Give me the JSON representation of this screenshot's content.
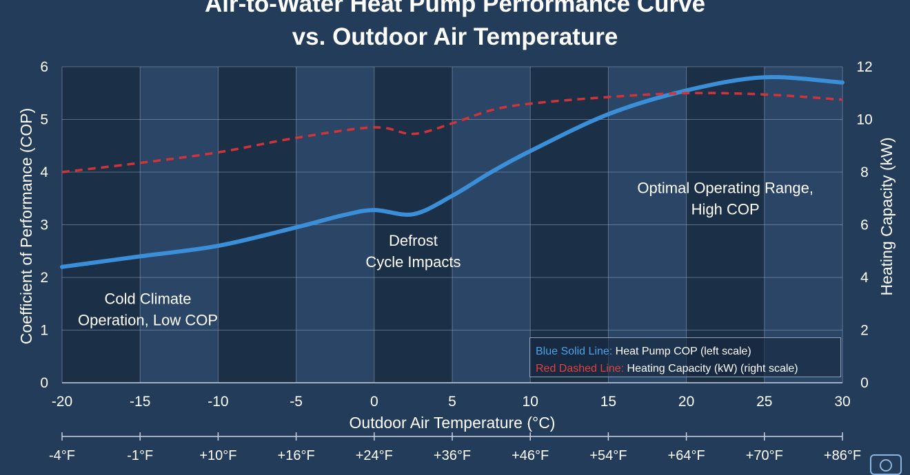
{
  "title_lines": [
    "Air-to-Water Heat Pump Performance Curve",
    "vs. Outdoor Air Temperature"
  ],
  "colors": {
    "background": "#233c5a",
    "band_dark": "#1b2f47",
    "band_light": "#2a4565",
    "grid": "#8fa2ba",
    "cop_line": "#3b8fd9",
    "capacity_line": "#d0343a"
  },
  "chart_data": {
    "type": "line",
    "title": "Air-to-Water Heat Pump Performance Curve vs. Outdoor Air Temperature",
    "xlabel": "Outdoor Air Temperature (°C)",
    "ylabel": "Coefficient of Performance (COP)",
    "y2label": "Heating Capacity (kW)",
    "xlim": [
      -20,
      30
    ],
    "ylim": [
      0,
      6
    ],
    "y2lim": [
      0,
      12
    ],
    "x_ticks": [
      -20,
      -15,
      -10,
      -5,
      0,
      5,
      10,
      15,
      20,
      25,
      30
    ],
    "y_ticks": [
      0,
      1,
      2,
      3,
      4,
      5,
      6
    ],
    "y2_ticks": [
      0,
      2,
      4,
      6,
      8,
      10,
      12
    ],
    "fahrenheit_ticks": [
      "-4°F",
      "-1°F",
      "+10°F",
      "+16°F",
      "+24°F",
      "+36°F",
      "+46°F",
      "+54°F",
      "+64°F",
      "+70°F",
      "+86°F"
    ],
    "grid": true,
    "legend_position": "bottom-right",
    "series": [
      {
        "name": "Heat Pump COP",
        "axis": "left",
        "style": "solid",
        "x": [
          -20,
          -15,
          -10,
          -5,
          -2,
          0,
          2.5,
          5,
          7.5,
          10,
          15,
          20,
          25,
          30
        ],
        "y": [
          2.2,
          2.4,
          2.6,
          2.95,
          3.18,
          3.28,
          3.2,
          3.55,
          4.0,
          4.4,
          5.1,
          5.55,
          5.8,
          5.7
        ]
      },
      {
        "name": "Heating Capacity (kW)",
        "axis": "right",
        "style": "dashed",
        "x": [
          -20,
          -15,
          -10,
          -5,
          0,
          2.5,
          5,
          7.5,
          10,
          15,
          20,
          25,
          30
        ],
        "y": [
          8.0,
          8.35,
          8.75,
          9.3,
          9.7,
          9.45,
          9.85,
          10.35,
          10.6,
          10.85,
          11.0,
          10.95,
          10.75
        ]
      }
    ],
    "annotations": [
      {
        "lines": [
          "Cold Climate",
          "Operation, Low COP"
        ],
        "x": -14.5,
        "y": 1.5
      },
      {
        "lines": [
          "Defrost",
          "Cycle Impacts"
        ],
        "x": 2.5,
        "y": 2.6
      },
      {
        "lines": [
          "Optimal Operating Range,",
          "High COP"
        ],
        "x": 22.5,
        "y": 3.6
      }
    ],
    "legend": [
      {
        "key": "Blue Solid Line:",
        "text": "Heat Pump COP (left scale)"
      },
      {
        "key": "Red Dashed Line:",
        "text": "Heating Capacity (kW) (right scale)"
      }
    ]
  }
}
